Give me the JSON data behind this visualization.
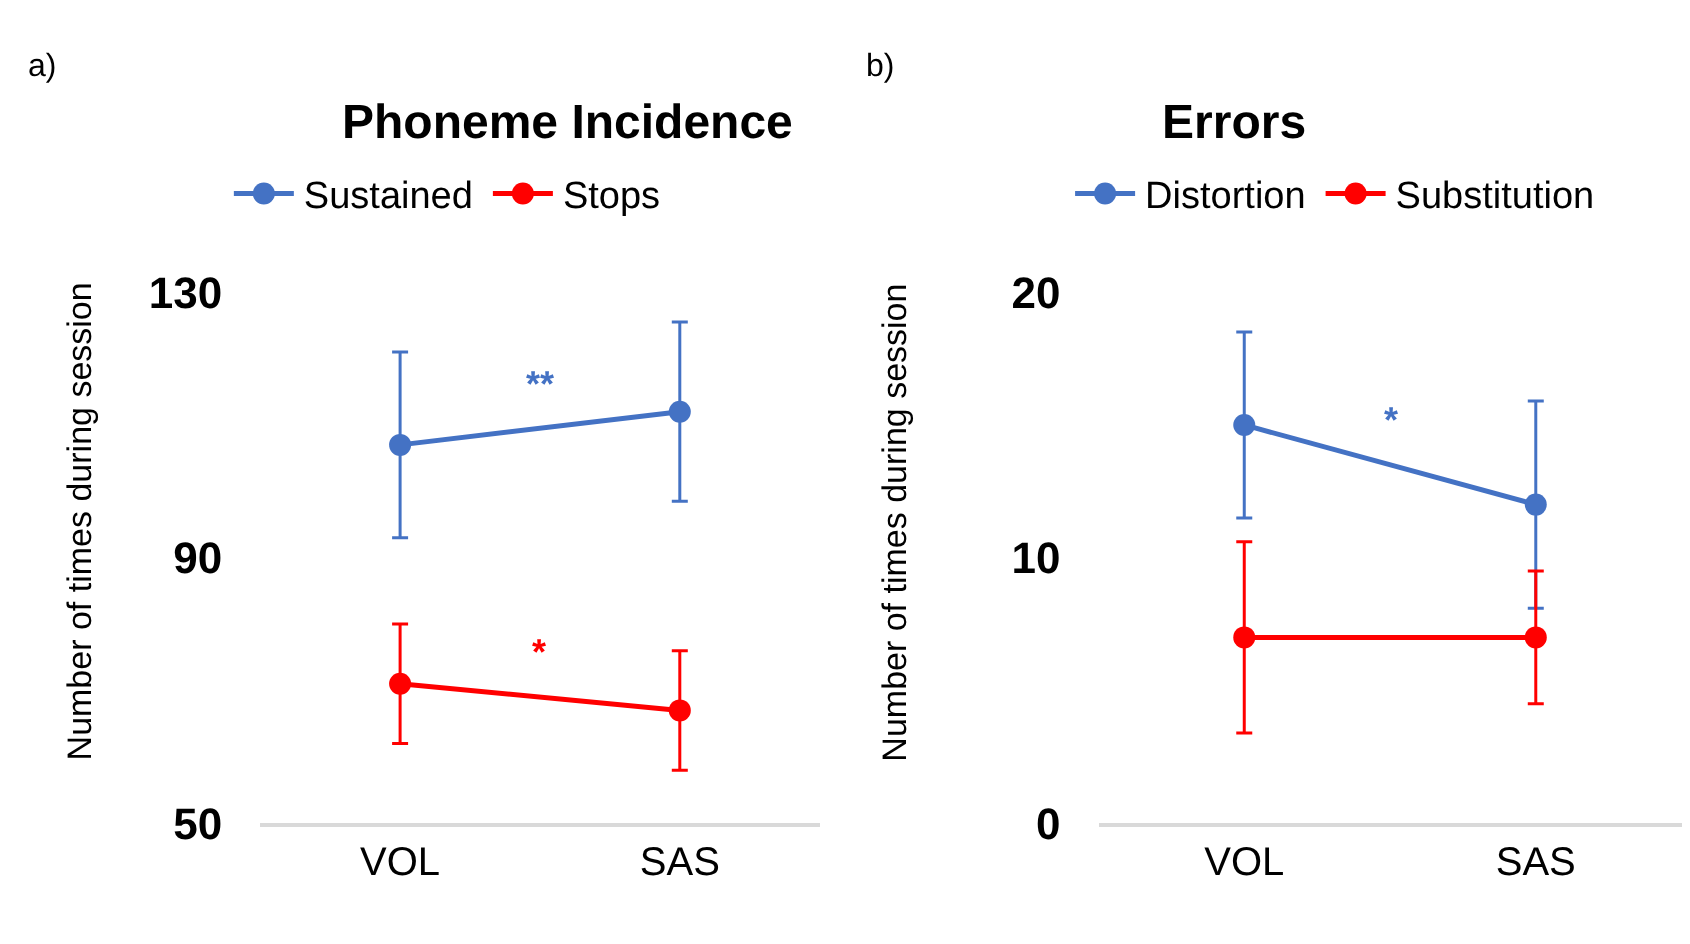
{
  "chart_data": [
    {
      "type": "line",
      "title": "Phoneme Incidence",
      "ylabel": "Number of times during session",
      "categories": [
        "VOL",
        "SAS"
      ],
      "series": [
        {
          "name": "Sustained",
          "color": "#4472c4",
          "values": [
            107,
            112
          ],
          "errors": [
            14,
            13.5
          ]
        },
        {
          "name": "Stops",
          "color": "#ff0000",
          "values": [
            71,
            67
          ],
          "errors": [
            9,
            9
          ]
        }
      ],
      "ylim": [
        50,
        130
      ],
      "yticks": [
        50,
        90,
        130
      ],
      "grid": false,
      "legend": "top",
      "marker": "circle",
      "line_style": "solid",
      "annotations": [
        "a)",
        "**",
        "*"
      ]
    },
    {
      "type": "line",
      "title": "Errors",
      "ylabel": "Number of times during session",
      "categories": [
        "VOL",
        "SAS"
      ],
      "series": [
        {
          "name": "Distortion",
          "color": "#4472c4",
          "values": [
            15,
            12
          ],
          "errors": [
            3.5,
            3.9
          ]
        },
        {
          "name": "Substitution",
          "color": "#ff0000",
          "values": [
            7,
            7
          ],
          "errors": [
            3.6,
            2.5
          ]
        }
      ],
      "ylim": [
        0,
        20
      ],
      "yticks": [
        0,
        10,
        20
      ],
      "grid": false,
      "legend": "top",
      "marker": "circle",
      "line_style": "solid",
      "annotations": [
        "b)",
        "*"
      ]
    }
  ]
}
